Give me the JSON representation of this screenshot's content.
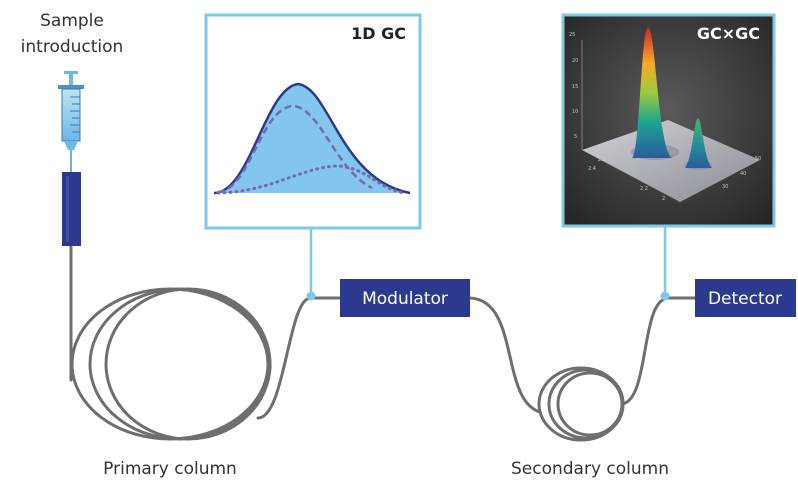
{
  "labels": {
    "sample_line1": "Sample",
    "sample_line2": "introduction",
    "primary_column": "Primary column",
    "secondary_column": "Secondary column",
    "modulator": "Modulator",
    "detector": "Detector",
    "panel_1d_title": "1D GC",
    "panel_2d_title": "GC×GC"
  },
  "surface_ticks": [
    "25",
    "20",
    "15",
    "10",
    "5",
    "2.4",
    "2.6",
    "2.2",
    "2",
    "40",
    "30",
    "50"
  ],
  "colors": {
    "navy_box": "#2b3a8f",
    "panel_border": "#7ec8ea",
    "tubing": "#6e6e6e",
    "peak_fill": "#7cc3ec",
    "peak_line": "#2b3a8f",
    "dashed_line": "#7768b0",
    "surface_bg": "#3a3a3a"
  },
  "icons": [
    "syringe-icon"
  ]
}
